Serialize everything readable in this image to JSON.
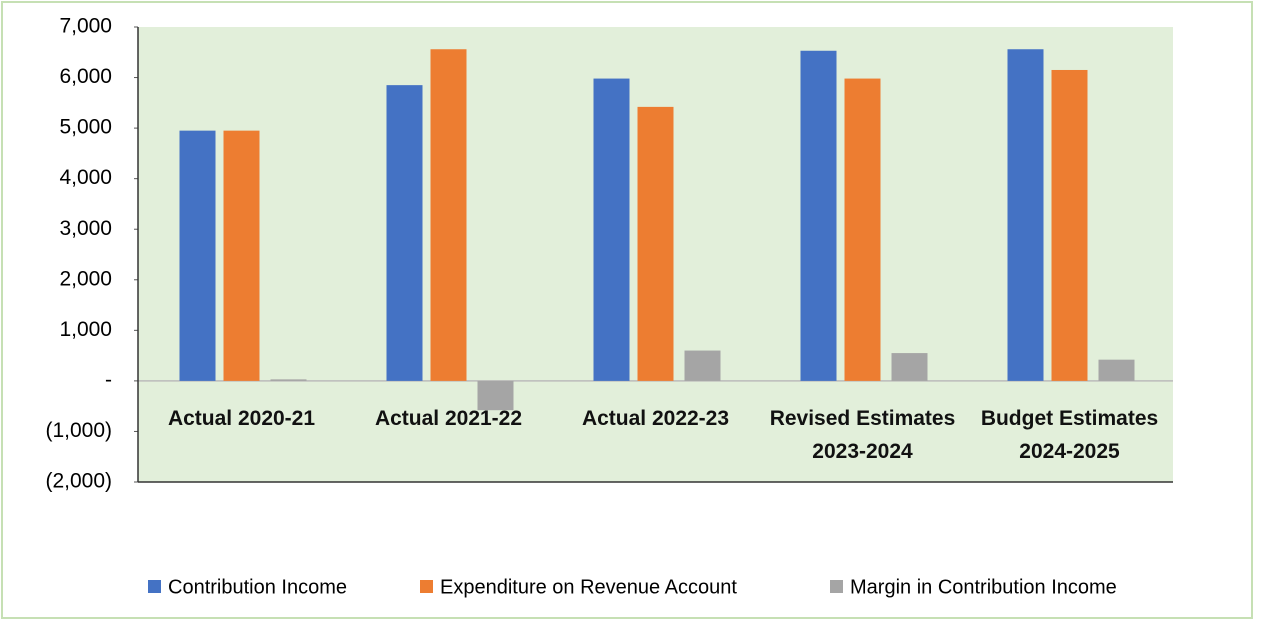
{
  "chart_data": {
    "type": "bar",
    "categories": [
      "Actual 2020-21",
      "Actual 2021-22",
      "Actual 2022-23",
      "Revised Estimates 2023-2024",
      "Budget Estimates 2024-2025"
    ],
    "series": [
      {
        "name": "Contribution Income",
        "color": "#4472c4",
        "values": [
          4950,
          5850,
          5980,
          6530,
          6560
        ]
      },
      {
        "name": "Expenditure on Revenue Account",
        "color": "#ed7d31",
        "values": [
          4950,
          6560,
          5420,
          5980,
          6150
        ]
      },
      {
        "name": "Margin in Contribution Income",
        "color": "#a5a5a5",
        "values": [
          30,
          -580,
          600,
          550,
          420
        ]
      }
    ],
    "ylim": [
      -2000,
      7000
    ],
    "yticks": [
      {
        "value": -2000,
        "label": "(2,000)"
      },
      {
        "value": -1000,
        "label": "(1,000)"
      },
      {
        "value": 0,
        "label": "-"
      },
      {
        "value": 1000,
        "label": "1,000"
      },
      {
        "value": 2000,
        "label": "2,000"
      },
      {
        "value": 3000,
        "label": "3,000"
      },
      {
        "value": 4000,
        "label": "4,000"
      },
      {
        "value": 5000,
        "label": "5,000"
      },
      {
        "value": 6000,
        "label": "6,000"
      },
      {
        "value": 7000,
        "label": "7,000"
      }
    ],
    "legend": "bottom"
  }
}
